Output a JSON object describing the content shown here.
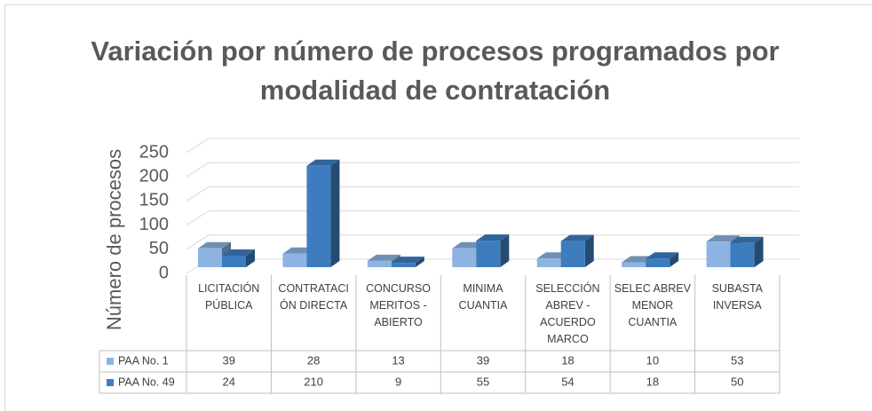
{
  "chart_data": {
    "type": "bar3d",
    "title": "Variación por número de procesos programados por modalidad de contratación",
    "y_label": "Número de procesos",
    "categories": [
      "LICITACIÓN PÚBLICA",
      "CONTRATACIÓN DIRECTA",
      "CONCURSO MERITOS - ABIERTO",
      "MINIMA CUANTIA",
      "SELECCIÓN ABREV - ACUERDO MARCO",
      "SELEC ABREV MENOR CUANTIA",
      "SUBASTA INVERSA"
    ],
    "series": [
      {
        "name": "PAA No. 1",
        "color": "#8db3e2",
        "values": [
          39,
          28,
          13,
          39,
          18,
          10,
          53
        ]
      },
      {
        "name": "PAA No. 49",
        "color": "#3d7dbf",
        "values": [
          24,
          210,
          9,
          55,
          54,
          18,
          50
        ]
      }
    ],
    "ylim": [
      0,
      250
    ],
    "yticks": [
      0,
      50,
      100,
      150,
      200,
      250
    ],
    "grid": true
  }
}
